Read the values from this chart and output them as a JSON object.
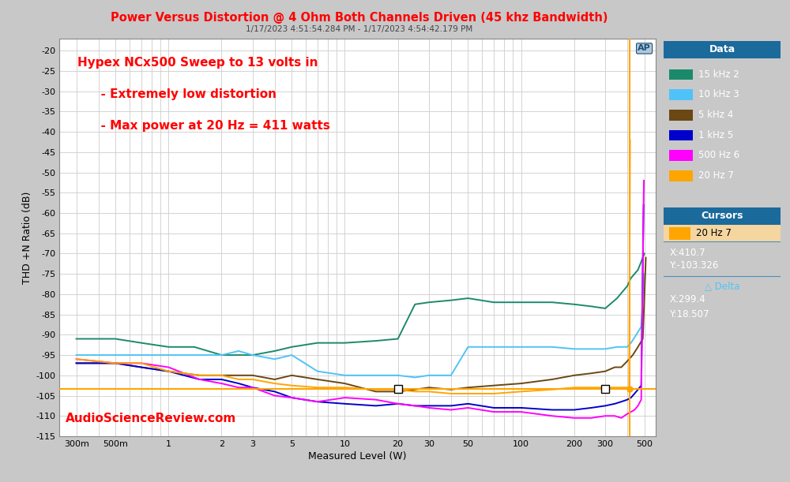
{
  "title": "Power Versus Distortion @ 4 Ohm Both Channels Driven (45 khz Bandwidth)",
  "subtitle": "1/17/2023 4:51:54.284 PM - 1/17/2023 4:54:42.179 PM",
  "xlabel": "Measured Level (W)",
  "ylabel": "THD +N Ratio (dB)",
  "annotation_line1": "Hypex NCx500 Sweep to 13 volts in",
  "annotation_line2": "  - Extremely low distortion",
  "annotation_line3": "  - Max power at 20 Hz = 411 watts",
  "watermark": "AudioScienceReview.com",
  "title_color": "#FF0000",
  "subtitle_color": "#444444",
  "annotation_color": "#FF0000",
  "watermark_color": "#FF0000",
  "bg_color": "#C8C8C8",
  "plot_bg_color": "#FFFFFF",
  "grid_color": "#CCCCCC",
  "ylim": [
    -115,
    -17
  ],
  "yticks": [
    -20,
    -25,
    -30,
    -35,
    -40,
    -45,
    -50,
    -55,
    -60,
    -65,
    -70,
    -75,
    -80,
    -85,
    -90,
    -95,
    -100,
    -105,
    -110,
    -115
  ],
  "xtick_labels": [
    "300m",
    "500m",
    "1",
    "2",
    "3",
    "5",
    "10",
    "20",
    "30",
    "50",
    "100",
    "200",
    "300",
    "500"
  ],
  "xtick_values": [
    0.3,
    0.5,
    1,
    2,
    3,
    5,
    10,
    20,
    30,
    50,
    100,
    200,
    300,
    500
  ],
  "cursor_x": 410.7,
  "hline_y": -103.326,
  "vline_color": "#FFA500",
  "hline_color": "#FFA500",
  "series": [
    {
      "label": "15 kHz 2",
      "color": "#1B8A6B",
      "x": [
        0.3,
        0.5,
        0.7,
        1.0,
        1.4,
        2.0,
        2.5,
        3.0,
        4.0,
        5.0,
        7.0,
        10.0,
        15.0,
        20.0,
        25.0,
        30.0,
        40.0,
        50.0,
        70.0,
        100.0,
        150.0,
        200.0,
        250.0,
        300.0,
        350.0,
        400.0,
        420.0,
        440.0,
        460.0,
        480.0,
        500.0
      ],
      "y": [
        -91,
        -91,
        -92,
        -93,
        -93,
        -95,
        -95,
        -95,
        -94,
        -93,
        -92,
        -92,
        -91.5,
        -91.0,
        -82.5,
        -82.0,
        -81.5,
        -81.0,
        -82.0,
        -82.0,
        -82.0,
        -82.5,
        -83.0,
        -83.5,
        -81.0,
        -78.0,
        -76.0,
        -75.0,
        -74.0,
        -72.0,
        -70.0
      ]
    },
    {
      "label": "10 kHz 3",
      "color": "#4FC3F7",
      "x": [
        0.3,
        0.5,
        0.7,
        1.0,
        1.5,
        2.0,
        2.5,
        3.0,
        4.0,
        5.0,
        7.0,
        10.0,
        15.0,
        20.0,
        25.0,
        30.0,
        40.0,
        50.0,
        70.0,
        100.0,
        150.0,
        200.0,
        250.0,
        300.0,
        350.0,
        380.0,
        400.0,
        420.0,
        450.0,
        480.0,
        500.0
      ],
      "y": [
        -95,
        -95,
        -95,
        -95,
        -95,
        -95,
        -94,
        -95,
        -96,
        -95,
        -99,
        -100,
        -100,
        -100,
        -100.5,
        -100.0,
        -100.0,
        -93.0,
        -93.0,
        -93.0,
        -93.0,
        -93.5,
        -93.5,
        -93.5,
        -93.0,
        -93.0,
        -93.0,
        -92.0,
        -90.0,
        -88.0,
        -75.0
      ]
    },
    {
      "label": "5 kHz 4",
      "color": "#6B4713",
      "x": [
        0.3,
        0.5,
        0.7,
        1.0,
        1.5,
        2.0,
        2.5,
        3.0,
        4.0,
        5.0,
        7.0,
        10.0,
        15.0,
        20.0,
        25.0,
        30.0,
        40.0,
        50.0,
        70.0,
        100.0,
        150.0,
        200.0,
        250.0,
        300.0,
        340.0,
        370.0,
        390.0,
        410.0,
        430.0,
        460.0,
        490.0,
        510.0
      ],
      "y": [
        -97,
        -97,
        -98,
        -99,
        -100,
        -100,
        -100,
        -100,
        -101,
        -100,
        -101,
        -102,
        -104,
        -104,
        -103.5,
        -103.0,
        -103.5,
        -103.0,
        -102.5,
        -102.0,
        -101.0,
        -100.0,
        -99.5,
        -99.0,
        -98.0,
        -98.0,
        -97.0,
        -96.0,
        -95.0,
        -93.0,
        -91.0,
        -71.0
      ]
    },
    {
      "label": "1 kHz 5",
      "color": "#0000CC",
      "x": [
        0.3,
        0.5,
        0.7,
        1.0,
        1.5,
        2.0,
        2.5,
        3.0,
        4.0,
        5.0,
        7.0,
        10.0,
        15.0,
        20.0,
        25.0,
        30.0,
        40.0,
        50.0,
        70.0,
        100.0,
        150.0,
        200.0,
        250.0,
        300.0,
        340.0,
        370.0,
        400.0,
        420.0,
        440.0,
        460.0,
        480.0,
        495.0
      ],
      "y": [
        -97,
        -97,
        -98,
        -99,
        -101,
        -101,
        -102,
        -103,
        -104,
        -105.5,
        -106.5,
        -107,
        -107.5,
        -107.0,
        -107.5,
        -107.5,
        -107.5,
        -107.0,
        -108.0,
        -108.0,
        -108.5,
        -108.5,
        -108.0,
        -107.5,
        -107.0,
        -106.5,
        -106.0,
        -105.5,
        -104.5,
        -103.5,
        -102.5,
        -58.0
      ]
    },
    {
      "label": "500 Hz 6",
      "color": "#FF00FF",
      "x": [
        0.3,
        0.5,
        0.7,
        1.0,
        1.5,
        2.0,
        2.5,
        3.0,
        4.0,
        5.0,
        7.0,
        10.0,
        15.0,
        20.0,
        25.0,
        30.0,
        40.0,
        50.0,
        70.0,
        100.0,
        150.0,
        200.0,
        250.0,
        300.0,
        340.0,
        370.0,
        400.0,
        420.0,
        440.0,
        460.0,
        480.0,
        497.0
      ],
      "y": [
        -96,
        -97,
        -97,
        -98,
        -101,
        -102,
        -103,
        -103,
        -105,
        -105.5,
        -106.5,
        -105.5,
        -106.0,
        -107.0,
        -107.5,
        -108.0,
        -108.5,
        -108.0,
        -109.0,
        -109.0,
        -110.0,
        -110.5,
        -110.5,
        -110.0,
        -110.0,
        -110.5,
        -109.5,
        -109.0,
        -108.5,
        -107.5,
        -106.0,
        -52.0
      ]
    },
    {
      "label": "20 Hz 7",
      "color": "#FFA500",
      "x": [
        0.3,
        0.5,
        0.7,
        1.0,
        1.5,
        2.0,
        2.5,
        3.0,
        4.0,
        5.0,
        7.0,
        10.0,
        15.0,
        20.0,
        25.0,
        30.0,
        40.0,
        50.0,
        70.0,
        100.0,
        150.0,
        200.0,
        250.0,
        300.0,
        350.0,
        380.0,
        400.0,
        410.0,
        415.0
      ],
      "y": [
        -96,
        -97,
        -97,
        -99,
        -100,
        -100,
        -101,
        -101,
        -102,
        -102.5,
        -103.0,
        -103.0,
        -103.5,
        -103.5,
        -104.0,
        -104.0,
        -104.5,
        -104.5,
        -104.5,
        -104.0,
        -103.5,
        -103.0,
        -103.0,
        -103.0,
        -103.0,
        -103.0,
        -103.0,
        -103.0,
        -42.0
      ]
    }
  ],
  "legend_title": "Data",
  "legend_bg_color": "#1B6A9C",
  "legend_header_color": "#1B6A9C",
  "legend_border_color": "#4A90C0",
  "cursors_title": "Cursors",
  "cursor_label": "20 Hz 7",
  "cursor_label_color": "#FFA500",
  "cursor_label_bg": "#F5D5A0",
  "cursor_x_label": "X:410.7",
  "cursor_y_label": "Y:-103.326",
  "delta_label": "△ Delta",
  "delta_x_label": "X:299.4",
  "delta_y_label": "Y:18.507",
  "delta_text_color": "#4FC3F7",
  "ap_logo_bg": "#B0C8DC",
  "ap_logo_color": "#1B4F72"
}
